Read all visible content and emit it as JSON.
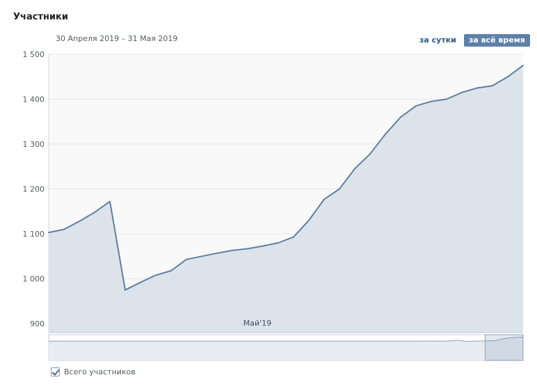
{
  "header": {
    "title": "Участники",
    "date_range": "30 Апреля 2019 – 31 Мая 2019"
  },
  "toggles": {
    "per_day": "за сутки",
    "all_time": "за всё время"
  },
  "legend": {
    "label": "Всего участников"
  },
  "colors": {
    "line": "#5e7fa3",
    "area": "#dde3eb",
    "plot_bg": "#f9f9f9",
    "grid": "#e6e6e6",
    "accent": "#5e81a8"
  },
  "chart_data": {
    "type": "area",
    "series": [
      {
        "name": "Всего участников",
        "values": [
          1103,
          1110,
          1128,
          1148,
          1172,
          975,
          992,
          1008,
          1018,
          1043,
          1050,
          1057,
          1063,
          1067,
          1073,
          1080,
          1093,
          1130,
          1177,
          1200,
          1245,
          1278,
          1322,
          1360,
          1385,
          1395,
          1400,
          1415,
          1425,
          1430,
          1450,
          1475
        ]
      }
    ],
    "y_ticks": [
      "900",
      "1 000",
      "1 100",
      "1 200",
      "1 300",
      "1 400",
      "1 500"
    ],
    "y_tick_values": [
      900,
      1000,
      1100,
      1200,
      1300,
      1400,
      1500
    ],
    "x_tick_label": "Май'19",
    "x_tick_index": 13,
    "ylim": [
      880,
      1500
    ],
    "grid": true,
    "navigator": {
      "overview_values": [
        0.1,
        0.1,
        0.1,
        0.1,
        0.1,
        0.1,
        0.1,
        0.1,
        0.1,
        0.1,
        0.1,
        0.1,
        0.1,
        0.1,
        0.1,
        0.1,
        0.1,
        0.1,
        0.1,
        0.1,
        0.1,
        0.1,
        0.1,
        0.1,
        0.1,
        0.1,
        0.1,
        0.1,
        0.1,
        0.1,
        0.1,
        0.1,
        0.1,
        0.1,
        0.1,
        0.1,
        0.1,
        0.1,
        0.1,
        0.1,
        0.12,
        0.1,
        0.1,
        0.25,
        0.05,
        0.1,
        0.14,
        0.18,
        0.55,
        0.75,
        0.82
      ],
      "selection_start": 0.92,
      "selection_end": 1.0
    }
  }
}
